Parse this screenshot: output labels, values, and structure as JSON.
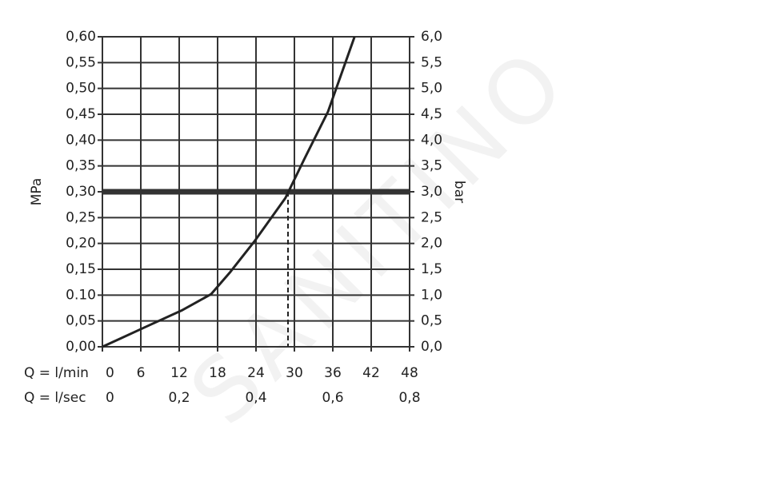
{
  "chart_data": {
    "type": "line",
    "watermark": "SANITINO",
    "ylabel": "MPa",
    "y2label": "bar",
    "xlabel": "Q = l/min",
    "x2label": "Q = l/sec",
    "x": [
      0,
      3,
      6.5,
      12.5,
      17,
      20,
      23.75,
      28.6,
      31.5,
      35.25,
      39.4
    ],
    "values": [
      0,
      0.017,
      0.037,
      0.071,
      0.102,
      0.145,
      0.204,
      0.288,
      0.362,
      0.455,
      0.6
    ],
    "color": "#222222",
    "xlim": [
      0,
      48
    ],
    "xticks": [
      0,
      6,
      12,
      18,
      24,
      30,
      36,
      42,
      48
    ],
    "x2lim": [
      0,
      0.8
    ],
    "x2ticks": [
      0,
      {
        "value": 0.2,
        "label": "0,2"
      },
      {
        "value": 0.4,
        "label": "0,4"
      },
      {
        "value": 0.6,
        "label": "0,6"
      },
      {
        "value": 0.8,
        "label": "0,8"
      }
    ],
    "ylim": [
      0,
      0.6
    ],
    "yticks": [
      {
        "value": 0,
        "label": "0,00"
      },
      {
        "value": 0.05,
        "label": "0,05"
      },
      {
        "value": 0.1,
        "label": "0.10"
      },
      {
        "value": 0.15,
        "label": "0,15"
      },
      {
        "value": 0.2,
        "label": "0,20"
      },
      {
        "value": 0.25,
        "label": "0,25"
      },
      {
        "value": 0.3,
        "label": "0,30"
      },
      {
        "value": 0.35,
        "label": "0,35"
      },
      {
        "value": 0.4,
        "label": "0,40"
      },
      {
        "value": 0.45,
        "label": "0,45"
      },
      {
        "value": 0.5,
        "label": "0,50"
      },
      {
        "value": 0.55,
        "label": "0,55"
      },
      {
        "value": 0.6,
        "label": "0,60"
      }
    ],
    "y2lim": [
      0,
      6
    ],
    "y2ticks": [
      {
        "value": 0,
        "label": "0,0"
      },
      {
        "value": 0.5,
        "label": "0,5"
      },
      {
        "value": 1,
        "label": "1,0"
      },
      {
        "value": 1.5,
        "label": "1,5"
      },
      {
        "value": 2,
        "label": "2,0"
      },
      {
        "value": 2.5,
        "label": "2,5"
      },
      {
        "value": 3,
        "label": "3,0"
      },
      {
        "value": 3.5,
        "label": "3,5"
      },
      {
        "value": 4,
        "label": "4,0"
      },
      {
        "value": 4.5,
        "label": "4,5"
      },
      {
        "value": 5,
        "label": "5,0"
      },
      {
        "value": 5.5,
        "label": "5,5"
      },
      {
        "value": 6,
        "label": "6,0"
      }
    ],
    "reference_y": 0.3,
    "reference_x": 29,
    "grid": true
  }
}
